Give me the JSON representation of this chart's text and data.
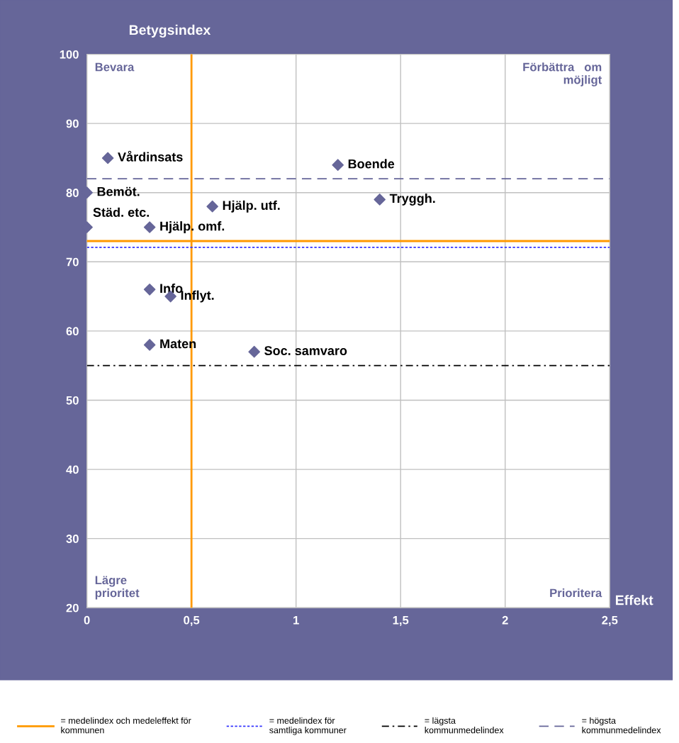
{
  "chart_data": {
    "type": "scatter",
    "ylabel": "Betygsindex",
    "xlabel": "Effekt",
    "x": [
      0.1,
      1.2,
      0,
      1.4,
      0.6,
      0,
      0.3,
      0.3,
      0.4,
      0.3,
      0.8
    ],
    "values": [
      85,
      84,
      80,
      79,
      78,
      75,
      75,
      66,
      65,
      58,
      57
    ],
    "color": "#666699",
    "marker": "diamond",
    "xlim": [
      0,
      2.5
    ],
    "ylim": [
      20,
      100
    ],
    "xticks": [
      0,
      {
        "value": 0.5,
        "label": "0,5"
      },
      1,
      {
        "value": 1.5,
        "label": "1,5"
      },
      2,
      {
        "value": 2.5,
        "label": "2,5"
      }
    ],
    "yticks": [
      20,
      30,
      40,
      50,
      60,
      70,
      80,
      90,
      100
    ],
    "grid": true,
    "legend": "bottom",
    "annotations": [
      {
        "text": "Vårdinsats",
        "x": 0.1,
        "y": 85
      },
      {
        "text": "Boende",
        "x": 1.2,
        "y": 84
      },
      {
        "text": "Bemöt.",
        "x": 0,
        "y": 80
      },
      {
        "text": "Tryggh.",
        "x": 1.4,
        "y": 79
      },
      {
        "text": "Hjälp. utf.",
        "x": 0.6,
        "y": 78
      },
      {
        "text": "Städ. etc.",
        "x": 0,
        "y": 75
      },
      {
        "text": "Hjälp. omf.",
        "x": 0.3,
        "y": 75
      },
      {
        "text": "Info",
        "x": 0.3,
        "y": 66
      },
      {
        "text": "Inflyt.",
        "x": 0.4,
        "y": 65
      },
      {
        "text": "Maten",
        "x": 0.3,
        "y": 58
      },
      {
        "text": "Soc. samvaro",
        "x": 0.8,
        "y": 57
      },
      "Bevara",
      "Förbättra   om\nmöjligt",
      "Lägre\nprioritet",
      "Prioritera"
    ],
    "ref_lines": [
      {
        "axis": "y",
        "value": 73,
        "label": "= medelindex och medeleffekt för\nkommunen",
        "color": "#ff9900",
        "line_style": "solid"
      },
      {
        "axis": "x",
        "value": 0.5,
        "label": null,
        "color": "#ff9900",
        "line_style": "solid"
      },
      {
        "axis": "y",
        "value": 72.1,
        "label": "= medelindex för\nsamtliga kommuner",
        "color": "#3333ff",
        "line_style": "dotted"
      },
      {
        "axis": "y",
        "value": 55,
        "label": "= lägsta\nkommunmedelindex",
        "color": "#000000",
        "line_style": "dashdot"
      },
      {
        "axis": "y",
        "value": 82,
        "label": "= högsta\nkommunmedelindex",
        "color": "#666699",
        "line_style": "dashed"
      }
    ]
  }
}
